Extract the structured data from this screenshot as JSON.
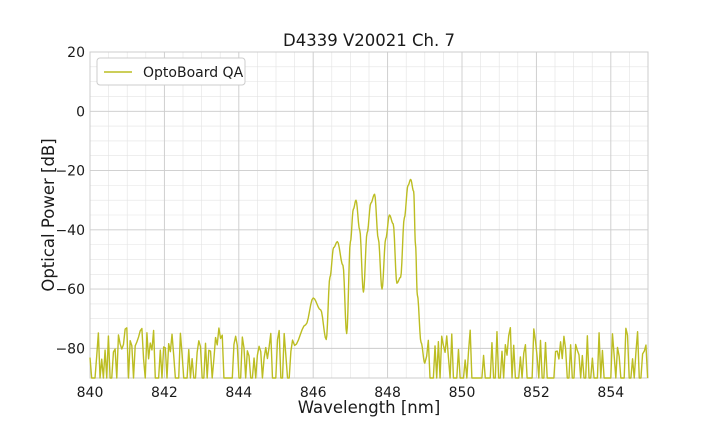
{
  "chart_data": {
    "type": "line",
    "title": "D4339 V20021 Ch. 7",
    "xlabel": "Wavelength [nm]",
    "ylabel": "Optical Power [dB]",
    "xlim": [
      840,
      855
    ],
    "ylim": [
      -90,
      20
    ],
    "x_ticks": [
      840,
      842,
      844,
      846,
      848,
      850,
      852,
      854
    ],
    "y_ticks": [
      -80,
      -60,
      -40,
      -20,
      0,
      20
    ],
    "x_tick_labels": [
      "840",
      "842",
      "844",
      "846",
      "848",
      "850",
      "852",
      "854"
    ],
    "y_tick_labels": [
      "−80",
      "−60",
      "−40",
      "−20",
      "0",
      "20"
    ],
    "grid": true,
    "minor_grid": true,
    "legend_position": "top-left",
    "series": [
      {
        "name": "OptoBoard QA",
        "color": "#bcbd22",
        "signal_x": [
          845.5,
          845.8,
          846.0,
          846.2,
          846.35,
          846.45,
          846.55,
          846.65,
          846.8,
          846.9,
          847.0,
          847.08,
          847.15,
          847.25,
          847.35,
          847.45,
          847.55,
          847.65,
          847.75,
          847.85,
          847.95,
          848.05,
          848.15,
          848.25,
          848.35,
          848.45,
          848.55,
          848.62,
          848.7,
          848.75,
          848.8,
          848.9,
          849.0
        ],
        "signal_y": [
          -79,
          -72,
          -63,
          -67,
          -77,
          -56,
          -46,
          -44,
          -52,
          -75,
          -44,
          -33,
          -30,
          -40,
          -61,
          -41,
          -31,
          -28,
          -43,
          -60,
          -43,
          -35,
          -38,
          -58,
          -56,
          -36,
          -25,
          -23,
          -27,
          -45,
          -62,
          -78,
          -85
        ],
        "noise_floor": -90,
        "noise_peak_range": [
          -84,
          -73
        ]
      }
    ]
  }
}
